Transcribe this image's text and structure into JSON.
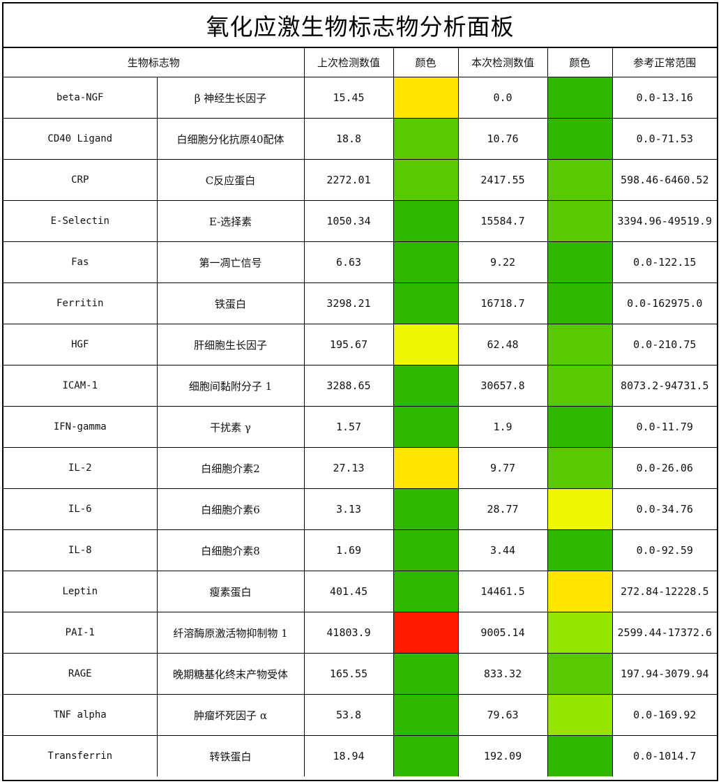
{
  "title": "氧化应激生物标志物分析面板",
  "headers": {
    "biomarker": "生物标志物",
    "last_value": "上次检测数值",
    "last_color": "颜色",
    "current_value": "本次检测数值",
    "current_color": "颜色",
    "reference_range": "参考正常范围"
  },
  "palette": {
    "dark_green": "#2eb800",
    "green": "#58c800",
    "light_green": "#93e400",
    "yellow_green": "#eef700",
    "yellow": "#ffe600",
    "red": "#ff1a00"
  },
  "rows": [
    {
      "code": "beta-NGF",
      "name": "β 神经生长因子",
      "last": "15.45",
      "last_color": "#ffe600",
      "current": "0.0",
      "current_color": "#2eb800",
      "range": "0.0-13.16"
    },
    {
      "code": "CD40 Ligand",
      "name": "白细胞分化抗原40配体",
      "last": "18.8",
      "last_color": "#58c800",
      "current": "10.76",
      "current_color": "#2eb800",
      "range": "0.0-71.53"
    },
    {
      "code": "CRP",
      "name": "C反应蛋白",
      "last": "2272.01",
      "last_color": "#58c800",
      "current": "2417.55",
      "current_color": "#58c800",
      "range": "598.46-6460.52"
    },
    {
      "code": "E-Selectin",
      "name": "E-选择素",
      "last": "1050.34",
      "last_color": "#2eb800",
      "current": "15584.7",
      "current_color": "#58c800",
      "range": "3394.96-49519.9"
    },
    {
      "code": "Fas",
      "name": "第一凋亡信号",
      "last": "6.63",
      "last_color": "#2eb800",
      "current": "9.22",
      "current_color": "#2eb800",
      "range": "0.0-122.15"
    },
    {
      "code": "Ferritin",
      "name": "铁蛋白",
      "last": "3298.21",
      "last_color": "#2eb800",
      "current": "16718.7",
      "current_color": "#2eb800",
      "range": "0.0-162975.0"
    },
    {
      "code": "HGF",
      "name": "肝细胞生长因子",
      "last": "195.67",
      "last_color": "#eef700",
      "current": "62.48",
      "current_color": "#58c800",
      "range": "0.0-210.75"
    },
    {
      "code": "ICAM-1",
      "name": "细胞间黏附分子 1",
      "last": "3288.65",
      "last_color": "#2eb800",
      "current": "30657.8",
      "current_color": "#58c800",
      "range": "8073.2-94731.5"
    },
    {
      "code": "IFN-gamma",
      "name": "干扰素 γ",
      "last": "1.57",
      "last_color": "#2eb800",
      "current": "1.9",
      "current_color": "#2eb800",
      "range": "0.0-11.79"
    },
    {
      "code": "IL-2",
      "name": "白细胞介素2",
      "last": "27.13",
      "last_color": "#ffe600",
      "current": "9.77",
      "current_color": "#58c800",
      "range": "0.0-26.06"
    },
    {
      "code": "IL-6",
      "name": "白细胞介素6",
      "last": "3.13",
      "last_color": "#2eb800",
      "current": "28.77",
      "current_color": "#eef700",
      "range": "0.0-34.76"
    },
    {
      "code": "IL-8",
      "name": "白细胞介素8",
      "last": "1.69",
      "last_color": "#2eb800",
      "current": "3.44",
      "current_color": "#2eb800",
      "range": "0.0-92.59"
    },
    {
      "code": "Leptin",
      "name": "瘦素蛋白",
      "last": "401.45",
      "last_color": "#2eb800",
      "current": "14461.5",
      "current_color": "#ffe600",
      "range": "272.84-12228.5"
    },
    {
      "code": "PAI-1",
      "name": "纤溶酶原激活物抑制物 1",
      "last": "41803.9",
      "last_color": "#ff1a00",
      "current": "9005.14",
      "current_color": "#93e400",
      "range": "2599.44-17372.6"
    },
    {
      "code": "RAGE",
      "name": "晚期糖基化终末产物受体",
      "last": "165.55",
      "last_color": "#2eb800",
      "current": "833.32",
      "current_color": "#58c800",
      "range": "197.94-3079.94"
    },
    {
      "code": "TNF alpha",
      "name": "肿瘤坏死因子 α",
      "last": "53.8",
      "last_color": "#2eb800",
      "current": "79.63",
      "current_color": "#93e400",
      "range": "0.0-169.92"
    },
    {
      "code": "Transferrin",
      "name": "转铁蛋白",
      "last": "18.94",
      "last_color": "#2eb800",
      "current": "192.09",
      "current_color": "#2eb800",
      "range": "0.0-1014.7"
    }
  ]
}
